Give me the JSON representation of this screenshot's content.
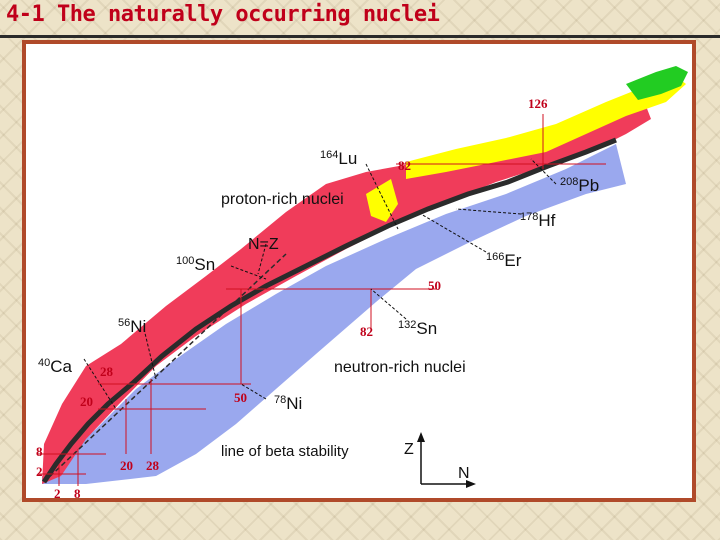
{
  "slide": {
    "title": "4-1 The naturally occurring nuclei"
  },
  "figure": {
    "region_labels": {
      "proton_rich": "proton-rich nuclei",
      "neutron_rich": "neutron-rich nuclei",
      "beta_line": "line of beta stability",
      "n_equals_z": "N=Z"
    },
    "axes": {
      "z_label": "Z",
      "n_label": "N"
    },
    "nuclei": [
      {
        "mass": "164",
        "symbol": "Lu"
      },
      {
        "mass": "208",
        "symbol": "Pb"
      },
      {
        "mass": "178",
        "symbol": "Hf"
      },
      {
        "mass": "166",
        "symbol": "Er"
      },
      {
        "mass": "100",
        "symbol": "Sn"
      },
      {
        "mass": "132",
        "symbol": "Sn"
      },
      {
        "mass": "56",
        "symbol": "Ni"
      },
      {
        "mass": "78",
        "symbol": "Ni"
      },
      {
        "mass": "40",
        "symbol": "Ca"
      }
    ],
    "magic_numbers": {
      "n126": "126",
      "n82_top": "82",
      "z50": "50",
      "n82_bottom": "82",
      "z28": "28",
      "z20": "20",
      "n50": "50",
      "z8": "8",
      "z2": "2",
      "n20": "20",
      "n28": "28",
      "n2": "2",
      "n8": "8"
    },
    "colors": {
      "proton_rich": "#f03c5a",
      "neutron_rich": "#9aa8ee",
      "stable": "#2b2b2b",
      "alpha_emitters": "#ffff00",
      "heavy": "#22cc22",
      "magic_line": "#d01020"
    }
  }
}
